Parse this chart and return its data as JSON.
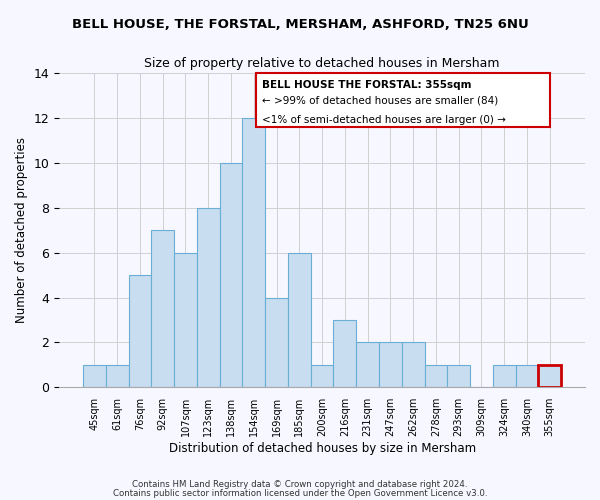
{
  "title": "BELL HOUSE, THE FORSTAL, MERSHAM, ASHFORD, TN25 6NU",
  "subtitle": "Size of property relative to detached houses in Mersham",
  "xlabel": "Distribution of detached houses by size in Mersham",
  "ylabel": "Number of detached properties",
  "bar_labels": [
    "45sqm",
    "61sqm",
    "76sqm",
    "92sqm",
    "107sqm",
    "123sqm",
    "138sqm",
    "154sqm",
    "169sqm",
    "185sqm",
    "200sqm",
    "216sqm",
    "231sqm",
    "247sqm",
    "262sqm",
    "278sqm",
    "293sqm",
    "309sqm",
    "324sqm",
    "340sqm",
    "355sqm"
  ],
  "bar_values": [
    1,
    1,
    5,
    7,
    6,
    8,
    10,
    12,
    4,
    6,
    1,
    3,
    2,
    2,
    2,
    1,
    1,
    0,
    1,
    1,
    1
  ],
  "bar_color": "#c8ddf0",
  "bar_edge_color": "#6aaed6",
  "highlight_index": 20,
  "highlight_edge_color": "#cc0000",
  "annotation_title": "BELL HOUSE THE FORSTAL: 355sqm",
  "annotation_line1": "← >99% of detached houses are smaller (84)",
  "annotation_line2": "<1% of semi-detached houses are larger (0) →",
  "annotation_box_edge": "#cc0000",
  "ylim": [
    0,
    14
  ],
  "yticks": [
    0,
    2,
    4,
    6,
    8,
    10,
    12,
    14
  ],
  "grid_color": "#d0d0d0",
  "background_color": "#f7f8ff",
  "footer_line1": "Contains HM Land Registry data © Crown copyright and database right 2024.",
  "footer_line2": "Contains public sector information licensed under the Open Government Licence v3.0."
}
